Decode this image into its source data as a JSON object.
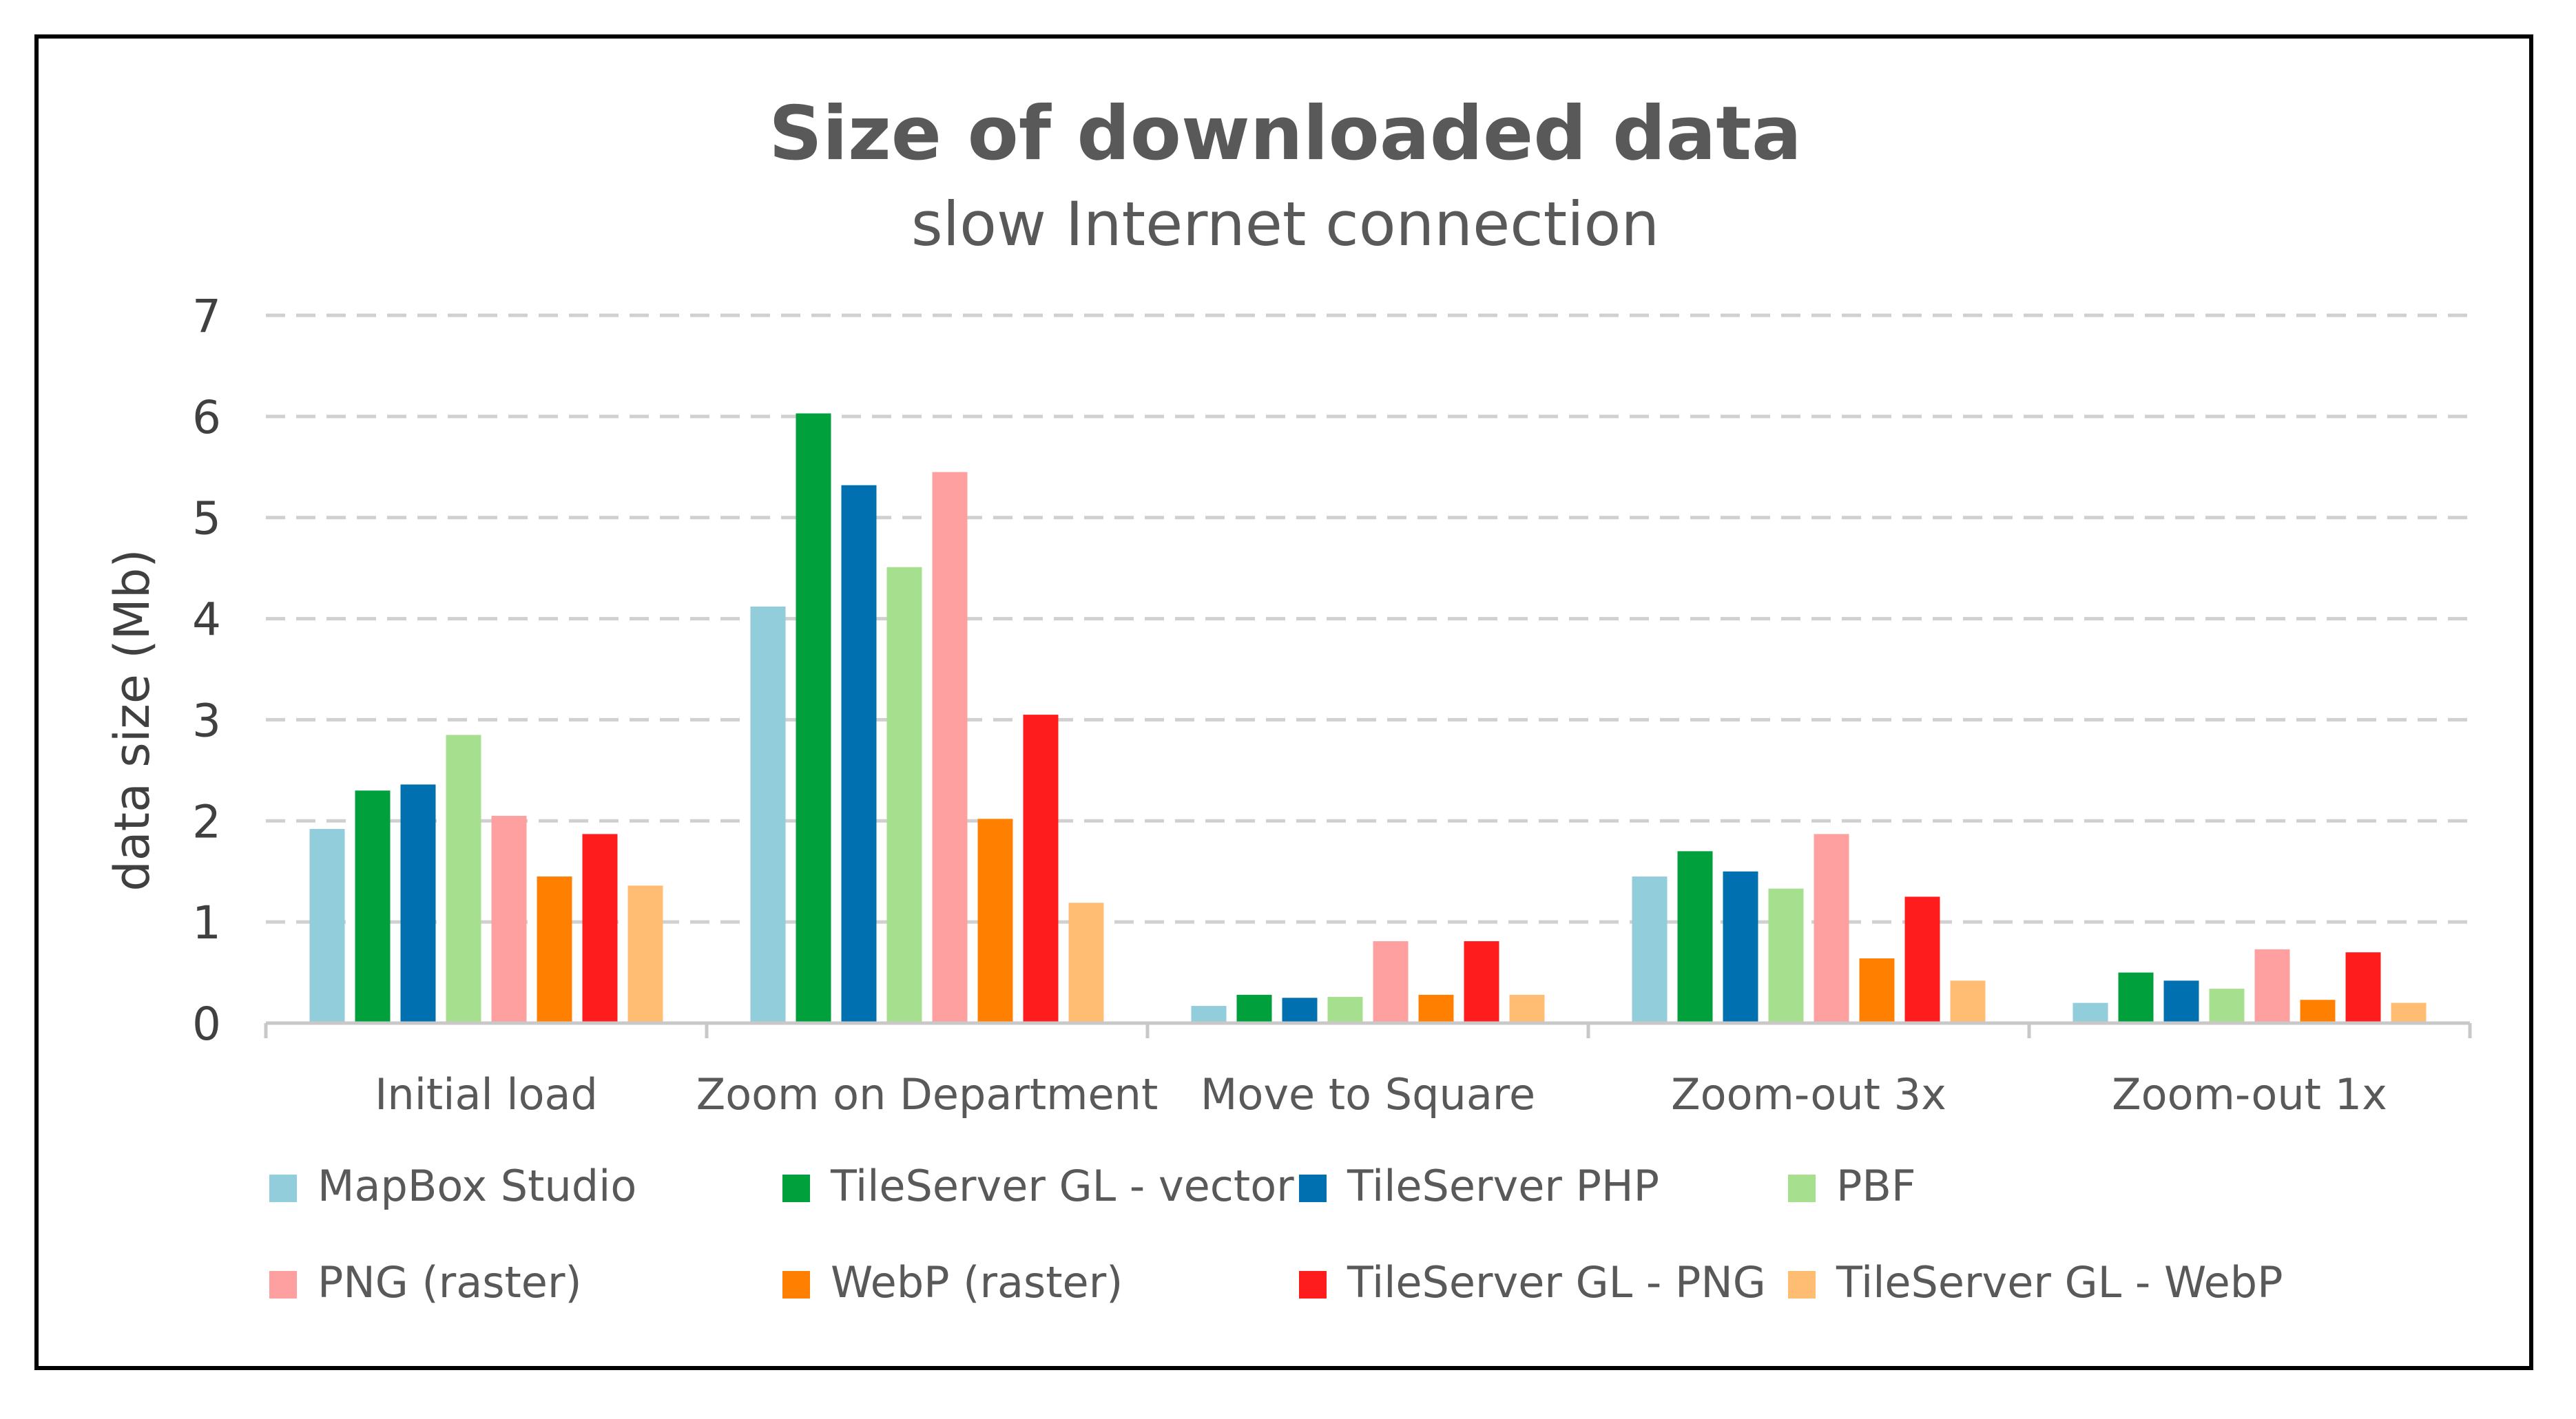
{
  "chart_data": {
    "type": "bar",
    "title": "Size of downloaded data",
    "subtitle": "slow Internet connection",
    "xlabel": "",
    "ylabel": "data size (Mb)",
    "ylim": [
      0,
      7
    ],
    "yticks": [
      0,
      1,
      2,
      3,
      4,
      5,
      6,
      7
    ],
    "grid": true,
    "legend_position": "bottom",
    "categories": [
      "Initial load",
      "Zoom on Department",
      "Move to Square",
      "Zoom-out 3x",
      "Zoom-out 1x"
    ],
    "series": [
      {
        "name": "MapBox Studio",
        "color": "#92CDDC",
        "values": [
          1.92,
          4.12,
          0.17,
          1.45,
          0.2
        ]
      },
      {
        "name": "TileServer GL - vector",
        "color": "#00A03C",
        "values": [
          2.3,
          6.03,
          0.28,
          1.7,
          0.5
        ]
      },
      {
        "name": "TileServer PHP",
        "color": "#0070B0",
        "values": [
          2.36,
          5.32,
          0.25,
          1.5,
          0.42
        ]
      },
      {
        "name": "PBF",
        "color": "#A6E08E",
        "values": [
          2.85,
          4.51,
          0.26,
          1.33,
          0.34
        ]
      },
      {
        "name": "PNG (raster)",
        "color": "#FFA0A0",
        "values": [
          2.05,
          5.45,
          0.81,
          1.87,
          0.73
        ]
      },
      {
        "name": "WebP (raster)",
        "color": "#FF8000",
        "values": [
          1.45,
          2.02,
          0.28,
          0.64,
          0.23
        ]
      },
      {
        "name": "TileServer GL - PNG",
        "color": "#FF1C1C",
        "values": [
          1.87,
          3.05,
          0.81,
          1.25,
          0.7
        ]
      },
      {
        "name": "TileServer GL - WebP",
        "color": "#FFBC73",
        "values": [
          1.36,
          1.19,
          0.28,
          0.42,
          0.2
        ]
      }
    ]
  }
}
